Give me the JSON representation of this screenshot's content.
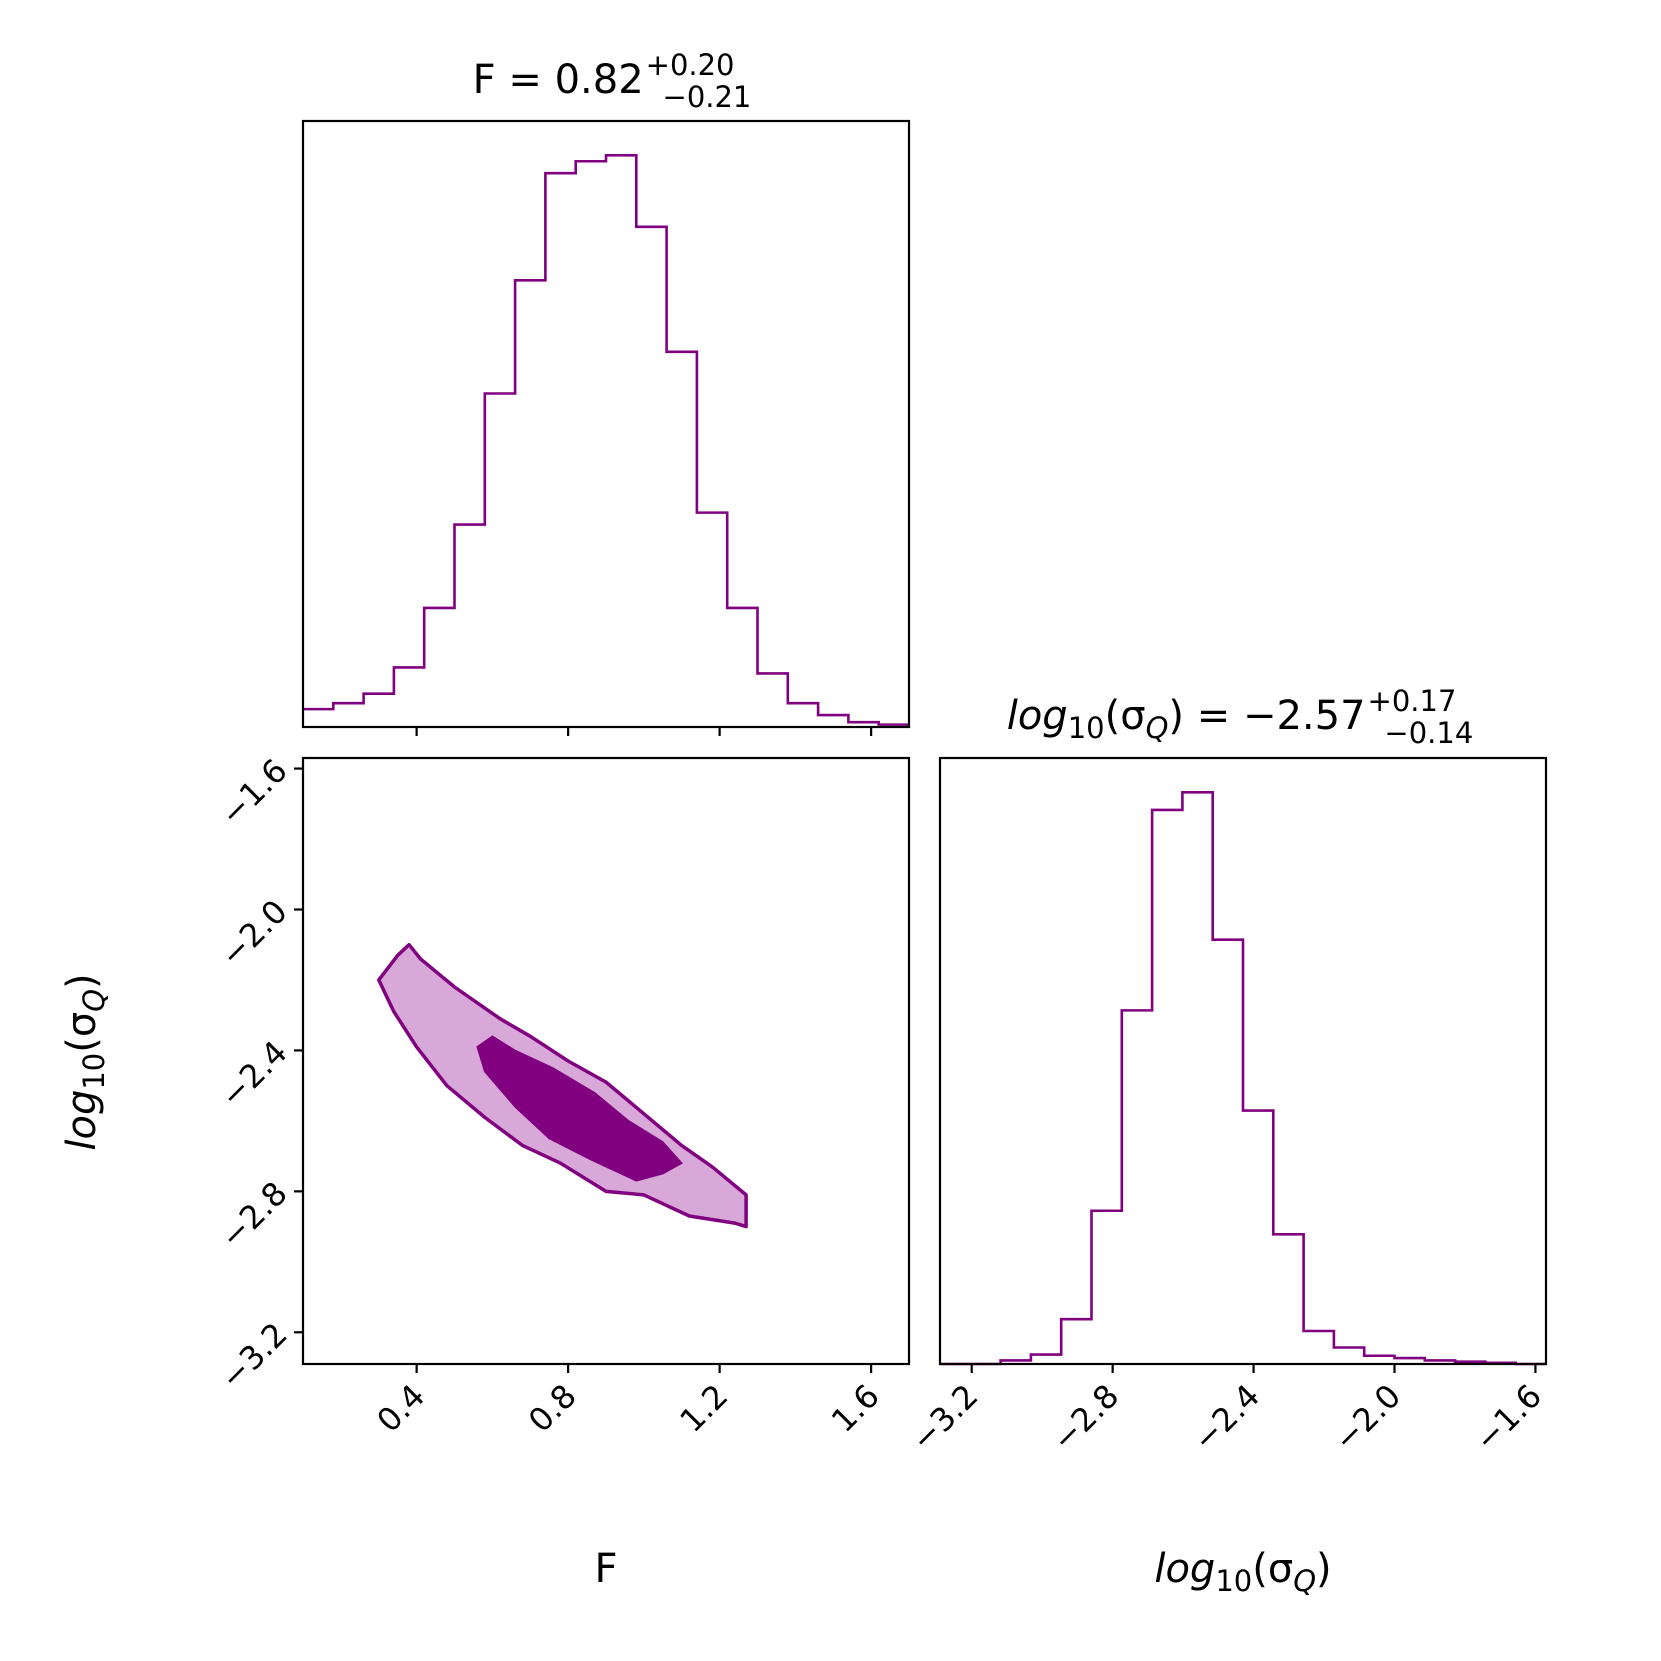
{
  "chart_data": [
    {
      "panel": "hist-F",
      "type": "histogram",
      "title": {
        "name": "F",
        "eq": " = ",
        "value": "0.82",
        "plus": "+0.20",
        "minus": "−0.21"
      },
      "xlim": [
        0.1,
        1.7
      ],
      "xticks": [
        0.4,
        0.8,
        1.2,
        1.6
      ],
      "tick_labels_shown": false,
      "bin_edges": [
        0.1,
        0.18,
        0.26,
        0.34,
        0.42,
        0.5,
        0.58,
        0.66,
        0.74,
        0.82,
        0.9,
        0.98,
        1.06,
        1.14,
        1.22,
        1.3,
        1.38,
        1.46,
        1.54,
        1.62,
        1.7
      ],
      "counts": [
        15,
        20,
        28,
        50,
        100,
        170,
        280,
        375,
        465,
        475,
        480,
        420,
        315,
        180,
        100,
        45,
        20,
        10,
        4,
        2
      ]
    },
    {
      "panel": "hist-sigma",
      "type": "histogram",
      "title": {
        "name": "log",
        "sub": "10",
        "open": "(σ",
        "sub2": "Q",
        "close": ")",
        "eq": " = ",
        "value": "−2.57",
        "plus": "+0.17",
        "minus": "−0.14"
      },
      "xlim": [
        -3.29,
        -1.57
      ],
      "xticks": [
        -3.2,
        -2.8,
        -2.4,
        -2.0,
        -1.6
      ],
      "bin_edges": [
        -3.29,
        -3.204,
        -3.118,
        -3.032,
        -2.946,
        -2.86,
        -2.774,
        -2.688,
        -2.602,
        -2.516,
        -2.43,
        -2.344,
        -2.258,
        -2.172,
        -2.086,
        -2.0,
        -1.914,
        -1.828,
        -1.742,
        -1.656,
        -1.57
      ],
      "counts": [
        0,
        0,
        3,
        8,
        38,
        130,
        300,
        470,
        485,
        360,
        215,
        110,
        28,
        14,
        7,
        5,
        3,
        2,
        1,
        0
      ]
    },
    {
      "panel": "contour",
      "type": "contour",
      "xlim": [
        0.1,
        1.7
      ],
      "ylim": [
        -3.29,
        -1.57
      ],
      "xticks": [
        0.4,
        0.8,
        1.2,
        1.6
      ],
      "yticks": [
        -3.2,
        -2.8,
        -2.4,
        -2.0,
        -1.6
      ],
      "outer_level": [
        [
          0.35,
          -2.13
        ],
        [
          0.38,
          -2.1
        ],
        [
          0.41,
          -2.14
        ],
        [
          0.5,
          -2.22
        ],
        [
          0.62,
          -2.31
        ],
        [
          0.7,
          -2.36
        ],
        [
          0.8,
          -2.43
        ],
        [
          0.9,
          -2.49
        ],
        [
          1.0,
          -2.58
        ],
        [
          1.1,
          -2.67
        ],
        [
          1.18,
          -2.73
        ],
        [
          1.27,
          -2.81
        ],
        [
          1.27,
          -2.9
        ],
        [
          1.24,
          -2.89
        ],
        [
          1.12,
          -2.87
        ],
        [
          1.0,
          -2.81
        ],
        [
          0.9,
          -2.8
        ],
        [
          0.78,
          -2.72
        ],
        [
          0.68,
          -2.67
        ],
        [
          0.58,
          -2.59
        ],
        [
          0.48,
          -2.5
        ],
        [
          0.4,
          -2.39
        ],
        [
          0.34,
          -2.29
        ],
        [
          0.3,
          -2.2
        ]
      ],
      "inner_level": [
        [
          0.56,
          -2.39
        ],
        [
          0.6,
          -2.36
        ],
        [
          0.66,
          -2.4
        ],
        [
          0.76,
          -2.45
        ],
        [
          0.87,
          -2.52
        ],
        [
          0.96,
          -2.6
        ],
        [
          1.05,
          -2.66
        ],
        [
          1.1,
          -2.72
        ],
        [
          1.05,
          -2.75
        ],
        [
          0.98,
          -2.77
        ],
        [
          0.86,
          -2.71
        ],
        [
          0.75,
          -2.65
        ],
        [
          0.66,
          -2.56
        ],
        [
          0.58,
          -2.46
        ]
      ],
      "xlabel": "F",
      "ylabel": {
        "base": "log",
        "sub": "10",
        "open": "(σ",
        "sub2": "Q",
        "close": ")"
      }
    }
  ],
  "style": {
    "hist_color": "#800080",
    "inner_fill": "#800080",
    "outer_fill": "#d8a9d8",
    "outline_color": "#800080",
    "frame_color": "#000000"
  },
  "labels": {
    "tick_F": [
      "0.4",
      "0.8",
      "1.2",
      "1.6"
    ],
    "tick_sigma": [
      "−3.2",
      "−2.8",
      "−2.4",
      "−2.0",
      "−1.6"
    ],
    "xlabel_F": "F",
    "sigma_label": {
      "base": "log",
      "sub": "10",
      "open": "(σ",
      "sub2": "Q",
      "close": ")"
    }
  }
}
